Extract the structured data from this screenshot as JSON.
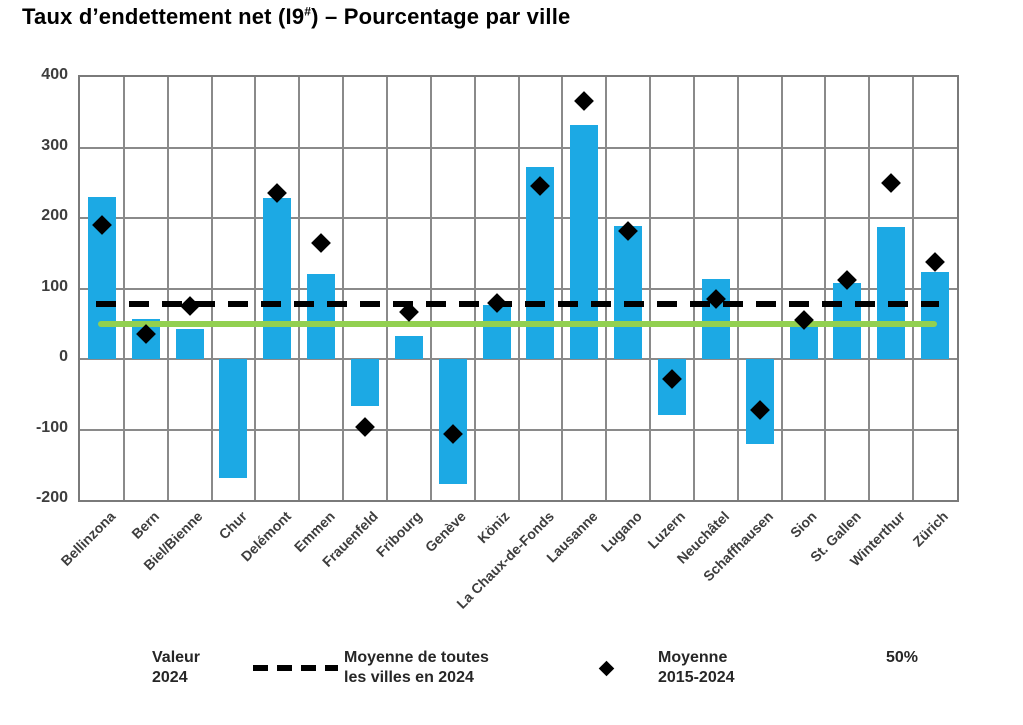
{
  "title": {
    "prefix": "Taux d’endettement net (I9",
    "superscript": "#",
    "suffix": ") – Pourcentage par ville"
  },
  "colors": {
    "bar_blue": "#1CA9E4",
    "diamond_black": "#000000",
    "dashed_black": "#000000",
    "line_green": "#92D050",
    "grid_gray": "#8a8a8a"
  },
  "chart_data": {
    "type": "bar",
    "title": "Taux d’endettement net (I9#) – Pourcentage par ville",
    "categories": [
      "Bellinzona",
      "Bern",
      "Biel/Bienne",
      "Chur",
      "Delémont",
      "Emmen",
      "Frauenfeld",
      "Fribourg",
      "Genève",
      "Köniz",
      "La Chaux-de-Fonds",
      "Lausanne",
      "Lugano",
      "Luzern",
      "Neuchâtel",
      "Schaffhausen",
      "Sion",
      "St. Gallen",
      "Winterthur",
      "Zürich"
    ],
    "series": [
      {
        "name": "Valeur 2024",
        "type": "bar",
        "color": "#1CA9E4",
        "values": [
          230,
          57,
          42,
          -169,
          229,
          120,
          -66,
          32,
          -177,
          76,
          273,
          332,
          189,
          -80,
          114,
          -120,
          48,
          108,
          187,
          124
        ]
      },
      {
        "name": "Moyenne 2015-2024",
        "type": "scatter",
        "marker": "diamond",
        "color": "#000000",
        "values": [
          190,
          36,
          75,
          null,
          235,
          165,
          -96,
          67,
          -107,
          80,
          246,
          366,
          182,
          -28,
          85,
          -72,
          56,
          112,
          250,
          137
        ]
      },
      {
        "name": "Moyenne de toutes les villes en 2024",
        "type": "hline",
        "style": "dashed",
        "color": "#000000",
        "value": 78
      },
      {
        "name": "50%",
        "type": "hline",
        "style": "solid",
        "color": "#92D050",
        "value": 50
      }
    ],
    "xlabel": "",
    "ylabel": "",
    "ylim": [
      -200,
      400
    ],
    "yticks": [
      400,
      300,
      200,
      100,
      0,
      -100,
      -200
    ],
    "grid": true,
    "legend_position": "bottom"
  },
  "legend": [
    {
      "swatch": "bar",
      "line1": "Valeur",
      "line2": "2024"
    },
    {
      "swatch": "dashed",
      "line1": "Moyenne de toutes",
      "line2": "les villes en 2024"
    },
    {
      "swatch": "diamond",
      "line1": "Moyenne",
      "line2": "2015-2024"
    },
    {
      "swatch": "solid",
      "line1": "50%",
      "line2": ""
    }
  ]
}
